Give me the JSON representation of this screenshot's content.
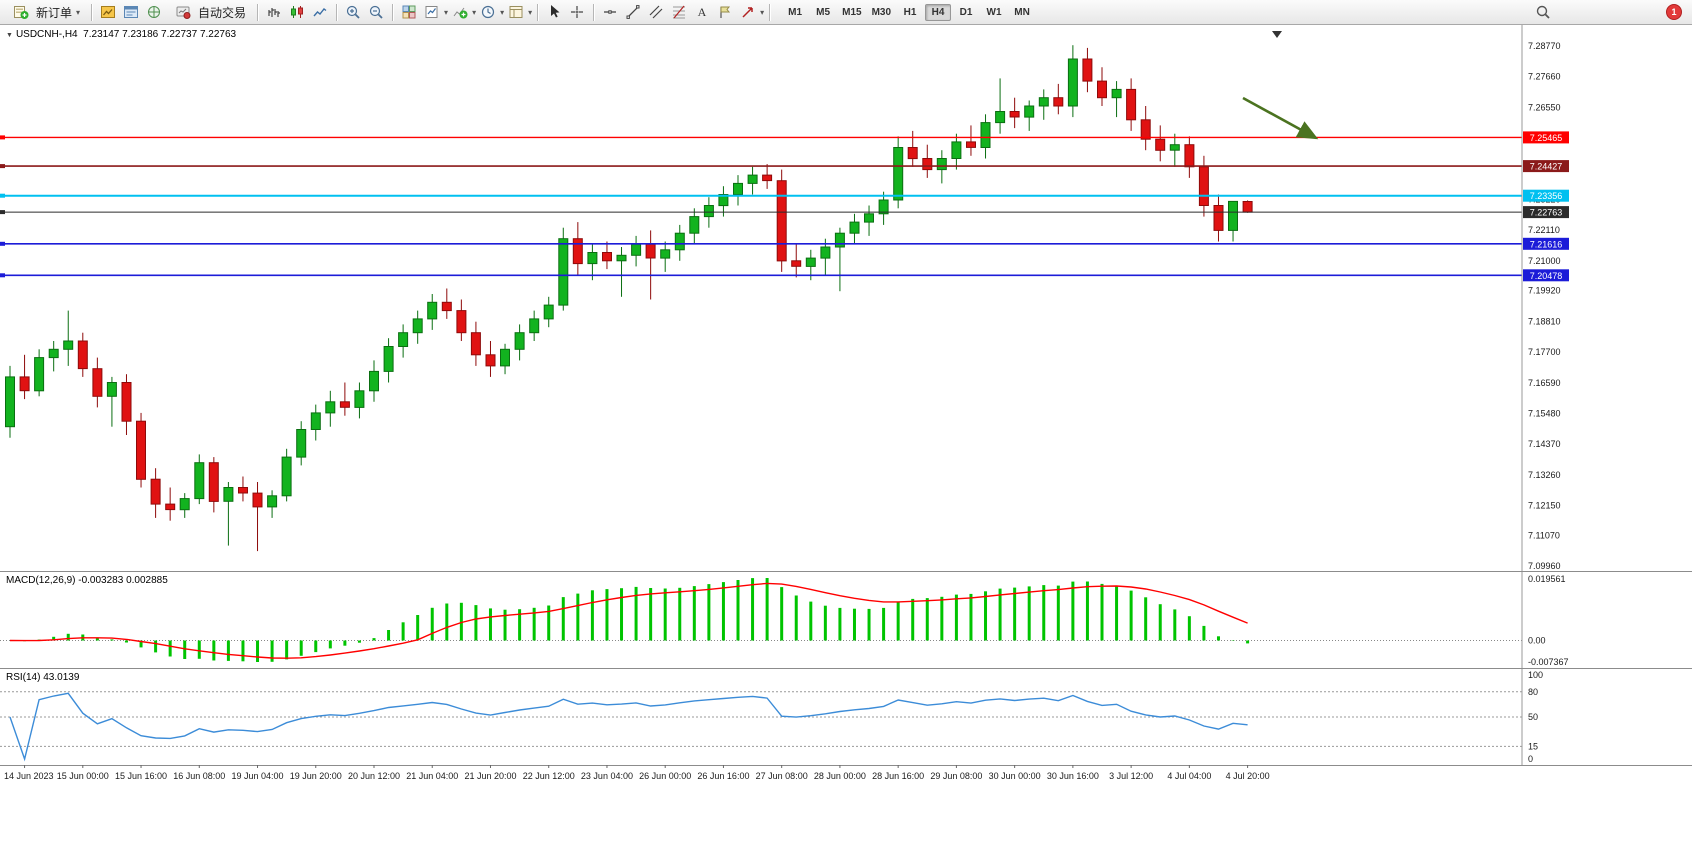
{
  "toolbar": {
    "new_order_label": "新订单",
    "auto_trading_label": "自动交易",
    "timeframes": [
      "M1",
      "M5",
      "M15",
      "M30",
      "H1",
      "H4",
      "D1",
      "W1",
      "MN"
    ],
    "active_timeframe": "H4",
    "notification_count": "1",
    "icon_names": [
      "new-order-icon",
      "market-watch-icon",
      "data-window-icon",
      "navigator-icon",
      "auto-trading-icon",
      "bar-chart-icon",
      "candlestick-chart-icon",
      "line-chart-icon",
      "zoom-in-icon",
      "zoom-out-icon",
      "tile-windows-icon",
      "new-chart-icon",
      "indicators-icon",
      "periods-icon",
      "templates-icon",
      "cursor-icon",
      "crosshair-icon",
      "horizontal-line-icon",
      "trendline-icon",
      "equidistant-channel-icon",
      "fibonacci-icon",
      "text-icon",
      "label-icon",
      "shapes-icon",
      "search-icon",
      "notification-badge"
    ]
  },
  "chart": {
    "symbol_period": "USDCNH-,H4",
    "ohlc_text": "7.23147 7.23186 7.22737 7.22763"
  },
  "chart_data": {
    "type": "candlestick",
    "symbol": "USDCNH",
    "period": "H4",
    "ylim": [
      7.0978,
      7.2953
    ],
    "colors": {
      "up": "#12B31F",
      "up_border": "#0A6E11",
      "down": "#E01212",
      "down_border": "#8E0A0A",
      "macd_histogram": "#00C400",
      "macd_signal": "#FF0000",
      "rsi_line": "#3C8CD8",
      "annotation": "#4B7320"
    },
    "price_axis_labels": [
      "7.28770",
      "7.27660",
      "7.26550",
      "7.25440",
      "7.24330",
      "7.23220",
      "7.22110",
      "7.21000",
      "7.19920",
      "7.18810",
      "7.17700",
      "7.16590",
      "7.15480",
      "7.14370",
      "7.13260",
      "7.12150",
      "7.11070",
      "7.09960"
    ],
    "time_labels": [
      "14 Jun 2023",
      "15 Jun 00:00",
      "15 Jun 16:00",
      "16 Jun 08:00",
      "19 Jun 04:00",
      "19 Jun 20:00",
      "20 Jun 12:00",
      "21 Jun 04:00",
      "21 Jun 20:00",
      "22 Jun 12:00",
      "23 Jun 04:00",
      "26 Jun 00:00",
      "26 Jun 16:00",
      "27 Jun 08:00",
      "28 Jun 00:00",
      "28 Jun 16:00",
      "29 Jun 08:00",
      "30 Jun 00:00",
      "30 Jun 16:00",
      "3 Jul 12:00",
      "4 Jul 04:00",
      "4 Jul 20:00"
    ],
    "hlines": [
      {
        "price": "7.25465",
        "value": 7.25465,
        "color": "#FF0000",
        "width": 1.4
      },
      {
        "price": "7.24427",
        "value": 7.24427,
        "color": "#8B1A1A",
        "width": 1.6
      },
      {
        "price": "7.23356",
        "value": 7.23356,
        "color": "#00C0F0",
        "width": 2
      },
      {
        "price": "7.22763",
        "value": 7.22763,
        "color": "#2B2B2B",
        "width": 1
      },
      {
        "price": "7.21616",
        "value": 7.21616,
        "color": "#1C1CD8",
        "width": 1.6
      },
      {
        "price": "7.20478",
        "value": 7.20478,
        "color": "#1C1CD8",
        "width": 1.6
      }
    ],
    "annotation_arrow": {
      "color": "#4B7320",
      "from": [
        1243,
        73
      ],
      "to": [
        1316,
        113
      ]
    },
    "candles": [
      [
        7.15,
        7.172,
        7.146,
        7.168
      ],
      [
        7.168,
        7.176,
        7.16,
        7.163
      ],
      [
        7.163,
        7.178,
        7.161,
        7.175
      ],
      [
        7.175,
        7.181,
        7.17,
        7.178
      ],
      [
        7.178,
        7.192,
        7.172,
        7.181
      ],
      [
        7.181,
        7.184,
        7.168,
        7.171
      ],
      [
        7.171,
        7.175,
        7.157,
        7.161
      ],
      [
        7.161,
        7.168,
        7.15,
        7.166
      ],
      [
        7.166,
        7.169,
        7.147,
        7.152
      ],
      [
        7.152,
        7.155,
        7.128,
        7.131
      ],
      [
        7.131,
        7.135,
        7.117,
        7.122
      ],
      [
        7.122,
        7.128,
        7.116,
        7.12
      ],
      [
        7.12,
        7.126,
        7.117,
        7.124
      ],
      [
        7.124,
        7.14,
        7.122,
        7.137
      ],
      [
        7.137,
        7.139,
        7.119,
        7.123
      ],
      [
        7.123,
        7.13,
        7.107,
        7.128
      ],
      [
        7.128,
        7.132,
        7.123,
        7.126
      ],
      [
        7.126,
        7.13,
        7.105,
        7.121
      ],
      [
        7.121,
        7.127,
        7.117,
        7.125
      ],
      [
        7.125,
        7.142,
        7.123,
        7.139
      ],
      [
        7.139,
        7.152,
        7.136,
        7.149
      ],
      [
        7.149,
        7.158,
        7.145,
        7.155
      ],
      [
        7.155,
        7.163,
        7.15,
        7.159
      ],
      [
        7.159,
        7.166,
        7.154,
        7.157
      ],
      [
        7.157,
        7.166,
        7.153,
        7.163
      ],
      [
        7.163,
        7.174,
        7.159,
        7.17
      ],
      [
        7.17,
        7.182,
        7.166,
        7.179
      ],
      [
        7.179,
        7.187,
        7.175,
        7.184
      ],
      [
        7.184,
        7.192,
        7.18,
        7.189
      ],
      [
        7.189,
        7.198,
        7.185,
        7.195
      ],
      [
        7.195,
        7.2,
        7.189,
        7.192
      ],
      [
        7.192,
        7.196,
        7.181,
        7.184
      ],
      [
        7.184,
        7.188,
        7.172,
        7.176
      ],
      [
        7.176,
        7.181,
        7.168,
        7.172
      ],
      [
        7.172,
        7.18,
        7.169,
        7.178
      ],
      [
        7.178,
        7.187,
        7.174,
        7.184
      ],
      [
        7.184,
        7.192,
        7.181,
        7.189
      ],
      [
        7.189,
        7.197,
        7.186,
        7.194
      ],
      [
        7.194,
        7.222,
        7.192,
        7.218
      ],
      [
        7.218,
        7.224,
        7.205,
        7.209
      ],
      [
        7.209,
        7.216,
        7.203,
        7.213
      ],
      [
        7.213,
        7.217,
        7.207,
        7.21
      ],
      [
        7.21,
        7.215,
        7.197,
        7.212
      ],
      [
        7.212,
        7.219,
        7.208,
        7.216
      ],
      [
        7.216,
        7.221,
        7.196,
        7.211
      ],
      [
        7.211,
        7.217,
        7.206,
        7.214
      ],
      [
        7.214,
        7.223,
        7.21,
        7.22
      ],
      [
        7.22,
        7.229,
        7.216,
        7.226
      ],
      [
        7.226,
        7.233,
        7.222,
        7.23
      ],
      [
        7.23,
        7.237,
        7.226,
        7.234
      ],
      [
        7.234,
        7.241,
        7.23,
        7.238
      ],
      [
        7.238,
        7.244,
        7.234,
        7.241
      ],
      [
        7.241,
        7.245,
        7.236,
        7.239
      ],
      [
        7.239,
        7.243,
        7.206,
        7.21
      ],
      [
        7.21,
        7.216,
        7.204,
        7.208
      ],
      [
        7.208,
        7.214,
        7.203,
        7.211
      ],
      [
        7.211,
        7.218,
        7.205,
        7.215
      ],
      [
        7.215,
        7.222,
        7.199,
        7.22
      ],
      [
        7.22,
        7.227,
        7.216,
        7.224
      ],
      [
        7.224,
        7.23,
        7.219,
        7.227
      ],
      [
        7.227,
        7.235,
        7.223,
        7.232
      ],
      [
        7.232,
        7.255,
        7.229,
        7.251
      ],
      [
        7.251,
        7.257,
        7.244,
        7.247
      ],
      [
        7.247,
        7.252,
        7.24,
        7.243
      ],
      [
        7.243,
        7.25,
        7.238,
        7.247
      ],
      [
        7.247,
        7.256,
        7.243,
        7.253
      ],
      [
        7.253,
        7.259,
        7.248,
        7.251
      ],
      [
        7.251,
        7.263,
        7.247,
        7.26
      ],
      [
        7.26,
        7.276,
        7.256,
        7.264
      ],
      [
        7.264,
        7.269,
        7.258,
        7.262
      ],
      [
        7.262,
        7.268,
        7.257,
        7.266
      ],
      [
        7.266,
        7.272,
        7.261,
        7.269
      ],
      [
        7.269,
        7.274,
        7.263,
        7.266
      ],
      [
        7.266,
        7.288,
        7.262,
        7.283
      ],
      [
        7.283,
        7.287,
        7.271,
        7.275
      ],
      [
        7.275,
        7.28,
        7.266,
        7.269
      ],
      [
        7.269,
        7.275,
        7.262,
        7.272
      ],
      [
        7.272,
        7.276,
        7.257,
        7.261
      ],
      [
        7.261,
        7.266,
        7.25,
        7.254
      ],
      [
        7.254,
        7.259,
        7.246,
        7.25
      ],
      [
        7.25,
        7.256,
        7.244,
        7.252
      ],
      [
        7.252,
        7.255,
        7.24,
        7.244
      ],
      [
        7.244,
        7.248,
        7.226,
        7.23
      ],
      [
        7.23,
        7.234,
        7.217,
        7.221
      ],
      [
        7.221,
        7.2295,
        7.217,
        7.2315
      ],
      [
        7.23147,
        7.23186,
        7.22737,
        7.22763
      ]
    ],
    "indicators": [
      {
        "name": "MACD",
        "label": "MACD(12,26,9) -0.003283 0.002885",
        "params": [
          12,
          26,
          9
        ],
        "values_text": [
          "-0.003283",
          "0.002885"
        ],
        "axis_labels": [
          "0.019561",
          "0.00",
          "-0.007367"
        ],
        "axis_values": [
          0.019561,
          0,
          -0.007367
        ]
      },
      {
        "name": "RSI",
        "label": "RSI(14) 43.0139",
        "params": [
          14
        ],
        "value_text": "43.0139",
        "levels": [
          80,
          50,
          15
        ],
        "axis_labels": [
          "100",
          "80",
          "50",
          "15",
          "0"
        ]
      }
    ]
  }
}
